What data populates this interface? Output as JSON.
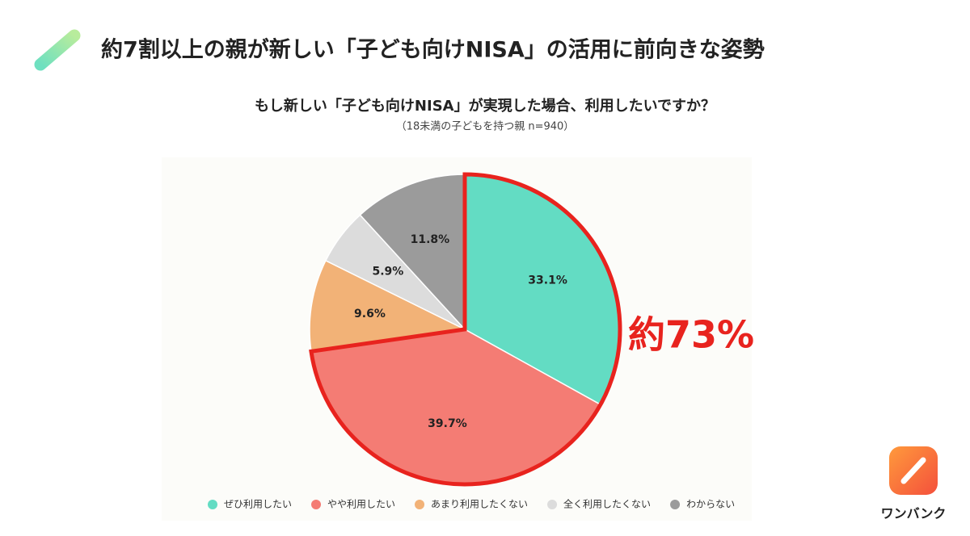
{
  "header": {
    "title": "約7割以上の親が新しい「子ども向けNISA」の活用に前向きな姿勢"
  },
  "chart_data": {
    "type": "pie",
    "title": "もし新しい「子ども向けNISA」が実現した場合、利用したいですか？",
    "subtitle": "（18未満の子どもを持つ親 n=940）",
    "categories": [
      "ぜひ利用したい",
      "やや利用したい",
      "あまり利用したくない",
      "全く利用したくない",
      "わからない"
    ],
    "values": [
      33.1,
      39.7,
      9.6,
      5.9,
      11.8
    ],
    "value_labels": [
      "33.1%",
      "39.7%",
      "9.6%",
      "5.9%",
      "11.8%"
    ],
    "colors": [
      "#63dcc3",
      "#f47c74",
      "#f2b277",
      "#dcdcdc",
      "#9b9b9b"
    ],
    "annotation": "約73%",
    "legend": "bottom"
  },
  "logo": {
    "text": "ワンバンク"
  }
}
